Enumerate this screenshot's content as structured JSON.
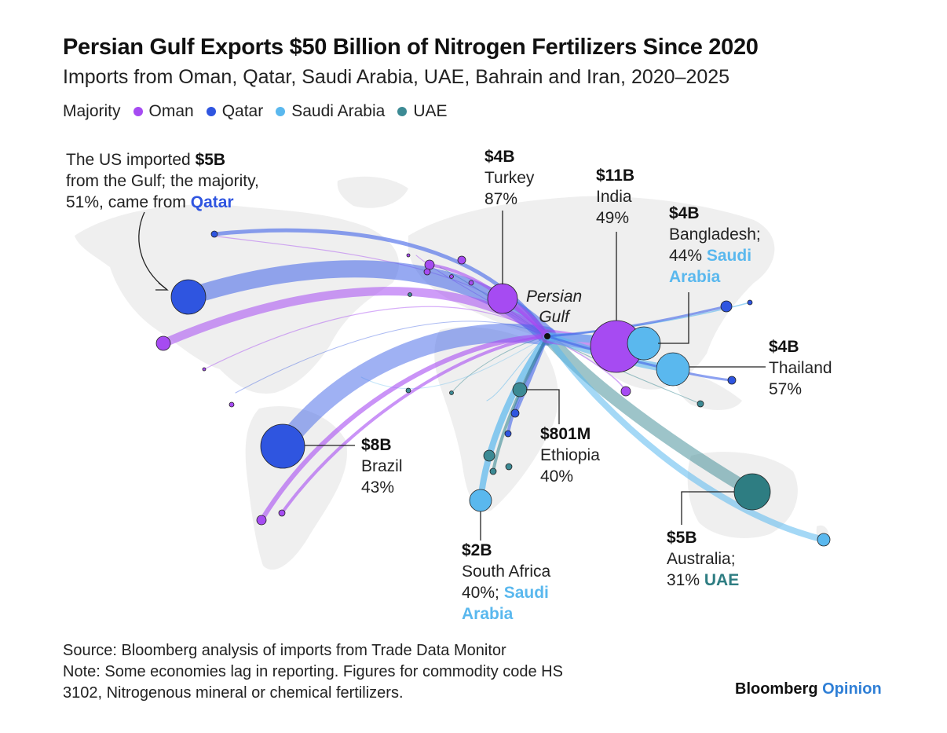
{
  "title": "Persian Gulf Exports $50 Billion of Nitrogen Fertilizers Since 2020",
  "subtitle": "Imports from Oman, Qatar, Saudi Arabia, UAE, Bahrain and Iran, 2020–2025",
  "legend": {
    "label": "Majority",
    "items": [
      {
        "name": "Oman",
        "color": "#a64bf2"
      },
      {
        "name": "Qatar",
        "color": "#2f55e0"
      },
      {
        "name": "Saudi Arabia",
        "color": "#5ab8ee"
      },
      {
        "name": "UAE",
        "color": "#3c8a94"
      }
    ]
  },
  "origin": {
    "label_1": "Persian",
    "label_2": "Gulf"
  },
  "annotations": {
    "us": {
      "line1_pre": "The US imported ",
      "value": "$5B",
      "line2": "from the Gulf; the majority,",
      "line3_pre": "51%, came from ",
      "highlight": "Qatar"
    },
    "turkey": {
      "value": "$4B",
      "country": "Turkey",
      "share": "87%"
    },
    "india": {
      "value": "$11B",
      "country": "India",
      "share": "49%"
    },
    "bangladesh": {
      "value": "$4B",
      "country": "Bangladesh;",
      "share": "44%",
      "highlight_1": "Saudi",
      "highlight_2": "Arabia"
    },
    "thailand": {
      "value": "$4B",
      "country": "Thailand",
      "share": "57%"
    },
    "brazil": {
      "value": "$8B",
      "country": "Brazil",
      "share": "43%"
    },
    "ethiopia": {
      "value": "$801M",
      "country": "Ethiopia",
      "share": "40%"
    },
    "south_africa": {
      "value": "$2B",
      "country": "South Africa",
      "share": "40%;",
      "highlight_1": "Saudi",
      "highlight_2": "Arabia"
    },
    "australia": {
      "value": "$5B",
      "country": "Australia;",
      "share": "31%",
      "highlight": "UAE"
    }
  },
  "footer": {
    "source": "Source: Bloomberg analysis of imports from Trade Data Monitor",
    "note_1": "Note: Some economies lag in reporting. Figures for commodity code HS",
    "note_2": "3102, Nitrogenous mineral or chemical fertilizers."
  },
  "brand": {
    "name": "Bloomberg",
    "section": "Opinion"
  }
}
